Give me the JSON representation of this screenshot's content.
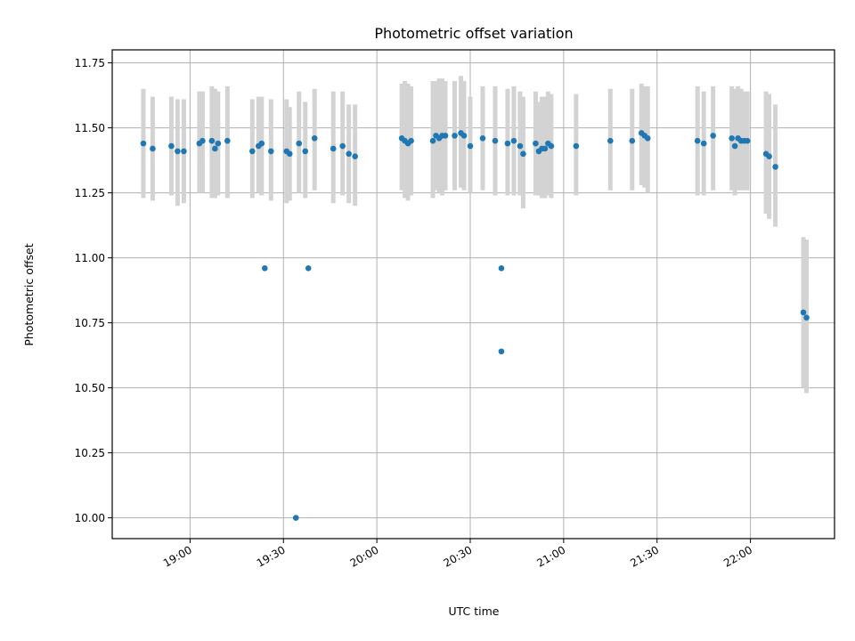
{
  "chart_data": {
    "type": "scatter",
    "title": "Photometric offset variation",
    "xlabel": "UTC time",
    "ylabel": "Photometric offset",
    "x_unit": "UTC time (HH:MM)",
    "xlim": [
      "18:35",
      "22:27"
    ],
    "ylim": [
      9.92,
      11.8
    ],
    "xticks": [
      "19:00",
      "19:30",
      "20:00",
      "20:30",
      "21:00",
      "21:30",
      "22:00"
    ],
    "yticks": [
      "10.00",
      "10.25",
      "10.50",
      "10.75",
      "11.00",
      "11.25",
      "11.50",
      "11.75"
    ],
    "grid": true,
    "legend": null,
    "colors": {
      "points": "#1f77b4",
      "errorbars": "#d3d3d3",
      "grid": "#b0b0b0"
    },
    "series": [
      {
        "points": [
          {
            "t": "18:45",
            "y": 11.44,
            "lo": 11.23,
            "hi": 11.65
          },
          {
            "t": "18:48",
            "y": 11.42,
            "lo": 11.22,
            "hi": 11.62
          },
          {
            "t": "18:54",
            "y": 11.43,
            "lo": 11.24,
            "hi": 11.62
          },
          {
            "t": "18:56",
            "y": 11.41,
            "lo": 11.2,
            "hi": 11.61
          },
          {
            "t": "18:58",
            "y": 11.41,
            "lo": 11.21,
            "hi": 11.61
          },
          {
            "t": "19:03",
            "y": 11.44,
            "lo": 11.25,
            "hi": 11.64
          },
          {
            "t": "19:04",
            "y": 11.45,
            "lo": 11.25,
            "hi": 11.64
          },
          {
            "t": "19:07",
            "y": 11.45,
            "lo": 11.23,
            "hi": 11.66
          },
          {
            "t": "19:08",
            "y": 11.42,
            "lo": 11.23,
            "hi": 11.65
          },
          {
            "t": "19:09",
            "y": 11.44,
            "lo": 11.24,
            "hi": 11.64
          },
          {
            "t": "19:12",
            "y": 11.45,
            "lo": 11.23,
            "hi": 11.66
          },
          {
            "t": "19:20",
            "y": 11.41,
            "lo": 11.23,
            "hi": 11.61
          },
          {
            "t": "19:22",
            "y": 11.43,
            "lo": 11.25,
            "hi": 11.62
          },
          {
            "t": "19:23",
            "y": 11.44,
            "lo": 11.24,
            "hi": 11.62
          },
          {
            "t": "19:24",
            "y": 10.96,
            "lo": null,
            "hi": null
          },
          {
            "t": "19:26",
            "y": 11.41,
            "lo": 11.22,
            "hi": 11.61
          },
          {
            "t": "19:31",
            "y": 11.41,
            "lo": 11.21,
            "hi": 11.61
          },
          {
            "t": "19:32",
            "y": 11.4,
            "lo": 11.22,
            "hi": 11.58
          },
          {
            "t": "19:34",
            "y": 10.0,
            "lo": null,
            "hi": null
          },
          {
            "t": "19:35",
            "y": 11.44,
            "lo": 11.25,
            "hi": 11.64
          },
          {
            "t": "19:37",
            "y": 11.41,
            "lo": 11.23,
            "hi": 11.6
          },
          {
            "t": "19:38",
            "y": 10.96,
            "lo": null,
            "hi": null
          },
          {
            "t": "19:40",
            "y": 11.46,
            "lo": 11.26,
            "hi": 11.65
          },
          {
            "t": "19:46",
            "y": 11.42,
            "lo": 11.21,
            "hi": 11.64
          },
          {
            "t": "19:49",
            "y": 11.43,
            "lo": 11.24,
            "hi": 11.64
          },
          {
            "t": "19:51",
            "y": 11.4,
            "lo": 11.21,
            "hi": 11.59
          },
          {
            "t": "19:53",
            "y": 11.39,
            "lo": 11.2,
            "hi": 11.59
          },
          {
            "t": "20:08",
            "y": 11.46,
            "lo": 11.26,
            "hi": 11.67
          },
          {
            "t": "20:09",
            "y": 11.45,
            "lo": 11.23,
            "hi": 11.68
          },
          {
            "t": "20:10",
            "y": 11.44,
            "lo": 11.22,
            "hi": 11.67
          },
          {
            "t": "20:11",
            "y": 11.45,
            "lo": 11.24,
            "hi": 11.66
          },
          {
            "t": "20:18",
            "y": 11.45,
            "lo": 11.23,
            "hi": 11.68
          },
          {
            "t": "20:19",
            "y": 11.47,
            "lo": 11.26,
            "hi": 11.68
          },
          {
            "t": "20:20",
            "y": 11.46,
            "lo": 11.25,
            "hi": 11.69
          },
          {
            "t": "20:21",
            "y": 11.47,
            "lo": 11.24,
            "hi": 11.69
          },
          {
            "t": "20:22",
            "y": 11.47,
            "lo": 11.26,
            "hi": 11.68
          },
          {
            "t": "20:25",
            "y": 11.47,
            "lo": 11.26,
            "hi": 11.68
          },
          {
            "t": "20:27",
            "y": 11.48,
            "lo": 11.27,
            "hi": 11.7
          },
          {
            "t": "20:28",
            "y": 11.47,
            "lo": 11.26,
            "hi": 11.68
          },
          {
            "t": "20:30",
            "y": 11.43,
            "lo": 11.25,
            "hi": 11.62
          },
          {
            "t": "20:34",
            "y": 11.46,
            "lo": 11.26,
            "hi": 11.66
          },
          {
            "t": "20:38",
            "y": 11.45,
            "lo": 11.24,
            "hi": 11.66
          },
          {
            "t": "20:40",
            "y": 10.96,
            "lo": null,
            "hi": null
          },
          {
            "t": "20:40",
            "y": 10.64,
            "lo": null,
            "hi": null
          },
          {
            "t": "20:42",
            "y": 11.44,
            "lo": 11.24,
            "hi": 11.65
          },
          {
            "t": "20:44",
            "y": 11.45,
            "lo": 11.24,
            "hi": 11.66
          },
          {
            "t": "20:46",
            "y": 11.43,
            "lo": 11.24,
            "hi": 11.64
          },
          {
            "t": "20:47",
            "y": 11.4,
            "lo": 11.19,
            "hi": 11.62
          },
          {
            "t": "20:51",
            "y": 11.44,
            "lo": 11.24,
            "hi": 11.64
          },
          {
            "t": "20:52",
            "y": 11.41,
            "lo": 11.24,
            "hi": 11.6
          },
          {
            "t": "20:53",
            "y": 11.42,
            "lo": 11.23,
            "hi": 11.62
          },
          {
            "t": "20:54",
            "y": 11.42,
            "lo": 11.23,
            "hi": 11.62
          },
          {
            "t": "20:55",
            "y": 11.44,
            "lo": 11.24,
            "hi": 11.64
          },
          {
            "t": "20:56",
            "y": 11.43,
            "lo": 11.23,
            "hi": 11.63
          },
          {
            "t": "21:04",
            "y": 11.43,
            "lo": 11.24,
            "hi": 11.63
          },
          {
            "t": "21:15",
            "y": 11.45,
            "lo": 11.26,
            "hi": 11.65
          },
          {
            "t": "21:22",
            "y": 11.45,
            "lo": 11.26,
            "hi": 11.65
          },
          {
            "t": "21:25",
            "y": 11.48,
            "lo": 11.28,
            "hi": 11.67
          },
          {
            "t": "21:26",
            "y": 11.47,
            "lo": 11.27,
            "hi": 11.66
          },
          {
            "t": "21:27",
            "y": 11.46,
            "lo": 11.25,
            "hi": 11.66
          },
          {
            "t": "21:43",
            "y": 11.45,
            "lo": 11.24,
            "hi": 11.66
          },
          {
            "t": "21:45",
            "y": 11.44,
            "lo": 11.24,
            "hi": 11.64
          },
          {
            "t": "21:48",
            "y": 11.47,
            "lo": 11.26,
            "hi": 11.66
          },
          {
            "t": "21:54",
            "y": 11.46,
            "lo": 11.26,
            "hi": 11.66
          },
          {
            "t": "21:55",
            "y": 11.43,
            "lo": 11.24,
            "hi": 11.65
          },
          {
            "t": "21:56",
            "y": 11.46,
            "lo": 11.26,
            "hi": 11.66
          },
          {
            "t": "21:57",
            "y": 11.45,
            "lo": 11.26,
            "hi": 11.65
          },
          {
            "t": "21:58",
            "y": 11.45,
            "lo": 11.26,
            "hi": 11.64
          },
          {
            "t": "21:59",
            "y": 11.45,
            "lo": 11.26,
            "hi": 11.64
          },
          {
            "t": "22:05",
            "y": 11.4,
            "lo": 11.17,
            "hi": 11.64
          },
          {
            "t": "22:06",
            "y": 11.39,
            "lo": 11.15,
            "hi": 11.63
          },
          {
            "t": "22:08",
            "y": 11.35,
            "lo": 11.12,
            "hi": 11.59
          },
          {
            "t": "22:17",
            "y": 10.79,
            "lo": 10.5,
            "hi": 11.08
          },
          {
            "t": "22:18",
            "y": 10.77,
            "lo": 10.48,
            "hi": 11.07
          }
        ]
      }
    ]
  }
}
